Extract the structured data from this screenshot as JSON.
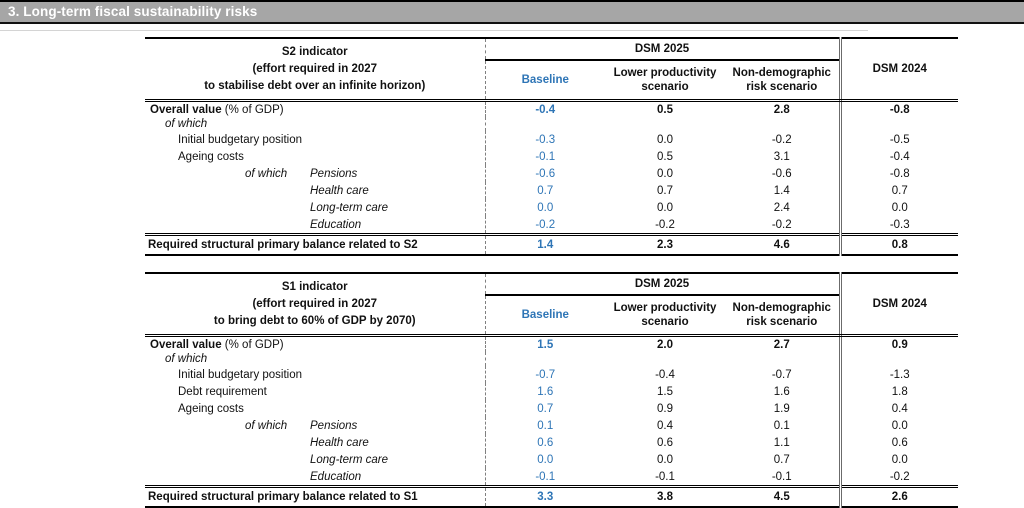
{
  "banner": {
    "title": "3. Long-term fiscal sustainability risks",
    "bg_color": "#a6a6a6",
    "text_color": "#ffffff"
  },
  "colors": {
    "accent_blue": "#2e75b6",
    "border_black": "#000000",
    "separator_gray": "#808080"
  },
  "tables": [
    {
      "id": "s2",
      "title_lines": [
        "S2 indicator",
        "(effort required in 2027",
        "to stabilise debt over an infinite horizon)"
      ],
      "group_header": "DSM 2025",
      "col_headers": [
        "Baseline",
        "Lower productivity scenario",
        "Non-demographic risk scenario"
      ],
      "last_col_header": "DSM 2024",
      "rows": [
        {
          "type": "overall",
          "label": "Overall value",
          "suffix": "(% of GDP)",
          "values": [
            "-0.4",
            "0.5",
            "2.8",
            "-0.8"
          ]
        },
        {
          "type": "ofwhich",
          "label": "of which",
          "values": []
        },
        {
          "type": "item",
          "label": "Initial budgetary position",
          "values": [
            "-0.3",
            "0.0",
            "-0.2",
            "-0.5"
          ]
        },
        {
          "type": "item",
          "label": "Ageing costs",
          "values": [
            "-0.1",
            "0.5",
            "3.1",
            "-0.4"
          ]
        },
        {
          "type": "subitem",
          "prefix": "of which",
          "label": "Pensions",
          "values": [
            "-0.6",
            "0.0",
            "-0.6",
            "-0.8"
          ]
        },
        {
          "type": "subitem",
          "label": "Health care",
          "values": [
            "0.7",
            "0.7",
            "1.4",
            "0.7"
          ]
        },
        {
          "type": "subitem",
          "label": "Long-term care",
          "values": [
            "0.0",
            "0.0",
            "2.4",
            "0.0"
          ]
        },
        {
          "type": "subitem",
          "label": "Education",
          "values": [
            "-0.2",
            "-0.2",
            "-0.2",
            "-0.3"
          ]
        },
        {
          "type": "total",
          "label": "Required structural primary balance related to S2",
          "values": [
            "1.4",
            "2.3",
            "4.6",
            "0.8"
          ]
        }
      ]
    },
    {
      "id": "s1",
      "title_lines": [
        "S1 indicator",
        "(effort required in 2027",
        "to bring debt to 60% of GDP by 2070)"
      ],
      "group_header": "DSM 2025",
      "col_headers": [
        "Baseline",
        "Lower productivity scenario",
        "Non-demographic risk scenario"
      ],
      "last_col_header": "DSM 2024",
      "rows": [
        {
          "type": "overall",
          "label": "Overall value",
          "suffix": "(% of GDP)",
          "values": [
            "1.5",
            "2.0",
            "2.7",
            "0.9"
          ]
        },
        {
          "type": "ofwhich",
          "label": "of which",
          "values": []
        },
        {
          "type": "item",
          "label": "Initial budgetary position",
          "values": [
            "-0.7",
            "-0.4",
            "-0.7",
            "-1.3"
          ]
        },
        {
          "type": "item",
          "label": "Debt requirement",
          "values": [
            "1.6",
            "1.5",
            "1.6",
            "1.8"
          ]
        },
        {
          "type": "item",
          "label": "Ageing costs",
          "values": [
            "0.7",
            "0.9",
            "1.9",
            "0.4"
          ]
        },
        {
          "type": "subitem",
          "prefix": "of which",
          "label": "Pensions",
          "values": [
            "0.1",
            "0.4",
            "0.1",
            "0.0"
          ]
        },
        {
          "type": "subitem",
          "label": "Health care",
          "values": [
            "0.6",
            "0.6",
            "1.1",
            "0.6"
          ]
        },
        {
          "type": "subitem",
          "label": "Long-term care",
          "values": [
            "0.0",
            "0.0",
            "0.7",
            "0.0"
          ]
        },
        {
          "type": "subitem",
          "label": "Education",
          "values": [
            "-0.1",
            "-0.1",
            "-0.1",
            "-0.2"
          ]
        },
        {
          "type": "total",
          "label": "Required structural primary balance related to S1",
          "values": [
            "3.3",
            "3.8",
            "4.5",
            "2.6"
          ]
        }
      ]
    }
  ]
}
